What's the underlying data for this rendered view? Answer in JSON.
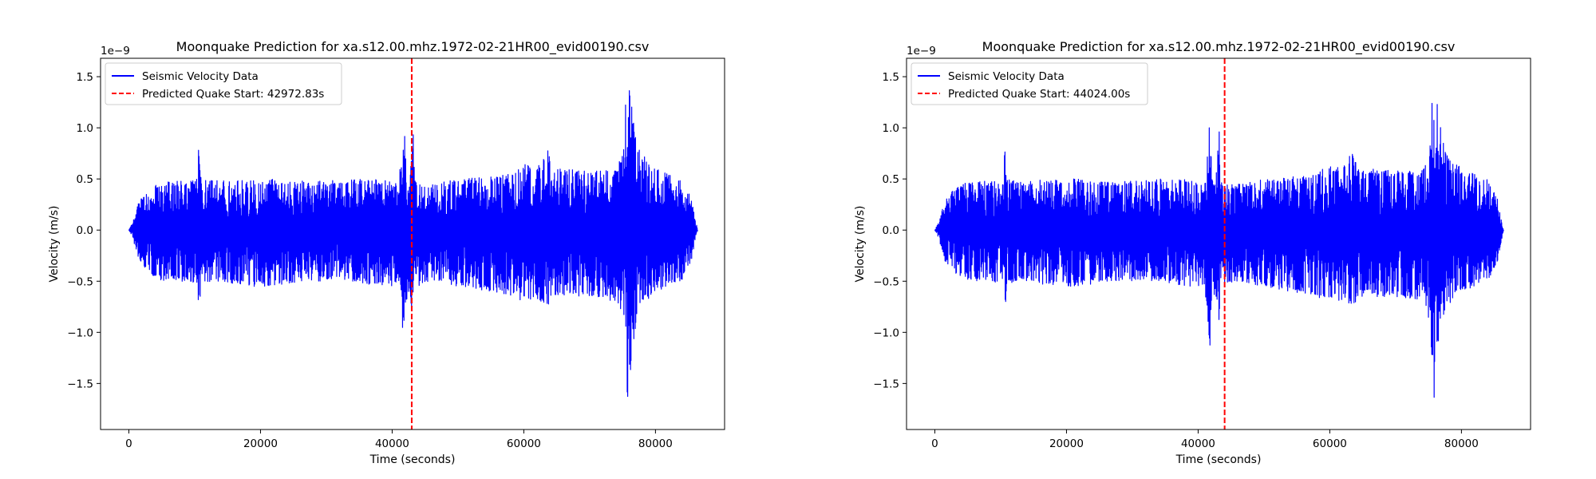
{
  "chart_data": [
    {
      "type": "line",
      "title": "Moonquake Prediction for xa.s12.00.mhz.1972-02-21HR00_evid00190.csv",
      "xlabel": "Time (seconds)",
      "ylabel": "Velocity (m/s)",
      "y_offset_label": "1e−9",
      "xlim": [
        -4300,
        90500
      ],
      "ylim": [
        -1.95,
        1.68
      ],
      "xticks": [
        0,
        20000,
        40000,
        60000,
        80000
      ],
      "xtick_labels": [
        "0",
        "20000",
        "40000",
        "60000",
        "80000"
      ],
      "yticks": [
        -1.5,
        -1.0,
        -0.5,
        0.0,
        0.5,
        1.0,
        1.5
      ],
      "ytick_labels": [
        "−1.5",
        "−1.0",
        "−0.5",
        "0.0",
        "0.5",
        "1.0",
        "1.5"
      ],
      "grid": false,
      "legend": "top-left",
      "series": [
        {
          "name": "Seismic Velocity Data",
          "color": "#0000ff",
          "style": "solid",
          "envelope": {
            "x": [
              0,
              600,
              1500,
              3000,
              5000,
              8000,
              10400,
              10600,
              11000,
              14000,
              18000,
              22000,
              26000,
              30000,
              34000,
              38000,
              41000,
              41800,
              42200,
              42600,
              43200,
              43400,
              43800,
              46000,
              50000,
              54000,
              58000,
              60000,
              62000,
              63800,
              64200,
              66000,
              70000,
              74000,
              75200,
              75600,
              76000,
              76500,
              77000,
              77600,
              78500,
              80000,
              82000,
              84000,
              85500,
              86400
            ],
            "upper": [
              0.0,
              0.08,
              0.28,
              0.42,
              0.48,
              0.48,
              0.5,
              0.82,
              0.5,
              0.48,
              0.5,
              0.5,
              0.48,
              0.48,
              0.5,
              0.5,
              0.45,
              1.13,
              0.5,
              0.45,
              1.0,
              0.5,
              0.45,
              0.45,
              0.5,
              0.52,
              0.55,
              0.65,
              0.62,
              0.82,
              0.6,
              0.6,
              0.58,
              0.58,
              0.8,
              1.52,
              1.45,
              1.2,
              0.9,
              0.8,
              0.7,
              0.6,
              0.55,
              0.5,
              0.3,
              0.0
            ],
            "lower": [
              0.0,
              -0.08,
              -0.3,
              -0.42,
              -0.5,
              -0.5,
              -0.52,
              -0.84,
              -0.52,
              -0.5,
              -0.55,
              -0.55,
              -0.5,
              -0.5,
              -0.5,
              -0.55,
              -0.55,
              -1.14,
              -0.7,
              -0.6,
              -0.9,
              -0.5,
              -0.55,
              -0.5,
              -0.55,
              -0.6,
              -0.65,
              -0.7,
              -0.68,
              -0.75,
              -0.65,
              -0.65,
              -0.65,
              -0.7,
              -0.9,
              -1.78,
              -1.6,
              -1.2,
              -0.95,
              -0.75,
              -0.7,
              -0.6,
              -0.55,
              -0.5,
              -0.3,
              0.0
            ]
          }
        },
        {
          "name": "Predicted Quake Start: 42972.83s",
          "color": "#ff0000",
          "style": "dashed",
          "x": 42972.83
        }
      ]
    },
    {
      "type": "line",
      "title": "Moonquake Prediction for xa.s12.00.mhz.1972-02-21HR00_evid00190.csv",
      "xlabel": "Time (seconds)",
      "ylabel": "Velocity (m/s)",
      "y_offset_label": "1e−9",
      "xlim": [
        -4300,
        90500
      ],
      "ylim": [
        -1.95,
        1.68
      ],
      "xticks": [
        0,
        20000,
        40000,
        60000,
        80000
      ],
      "xtick_labels": [
        "0",
        "20000",
        "40000",
        "60000",
        "80000"
      ],
      "yticks": [
        -1.5,
        -1.0,
        -0.5,
        0.0,
        0.5,
        1.0,
        1.5
      ],
      "ytick_labels": [
        "−1.5",
        "−1.0",
        "−0.5",
        "0.0",
        "0.5",
        "1.0",
        "1.5"
      ],
      "grid": false,
      "legend": "top-left",
      "series": [
        {
          "name": "Seismic Velocity Data",
          "color": "#0000ff",
          "style": "solid",
          "envelope": {
            "x": [
              0,
              600,
              1500,
              3000,
              5000,
              8000,
              10400,
              10600,
              11000,
              14000,
              18000,
              22000,
              26000,
              30000,
              34000,
              38000,
              41000,
              41800,
              42200,
              42600,
              43200,
              43400,
              43800,
              46000,
              50000,
              54000,
              58000,
              60000,
              62000,
              63800,
              64200,
              66000,
              70000,
              74000,
              75200,
              75600,
              76000,
              76500,
              77000,
              77600,
              78500,
              80000,
              82000,
              84000,
              85500,
              86400
            ],
            "upper": [
              0.0,
              0.08,
              0.28,
              0.42,
              0.48,
              0.48,
              0.5,
              0.82,
              0.5,
              0.48,
              0.5,
              0.5,
              0.48,
              0.48,
              0.5,
              0.5,
              0.45,
              1.13,
              0.5,
              0.45,
              1.0,
              0.5,
              0.45,
              0.45,
              0.5,
              0.52,
              0.55,
              0.65,
              0.62,
              0.82,
              0.6,
              0.6,
              0.58,
              0.58,
              0.8,
              1.52,
              1.45,
              1.2,
              0.9,
              0.8,
              0.7,
              0.6,
              0.55,
              0.5,
              0.3,
              0.0
            ],
            "lower": [
              0.0,
              -0.08,
              -0.3,
              -0.42,
              -0.5,
              -0.5,
              -0.52,
              -0.84,
              -0.52,
              -0.5,
              -0.55,
              -0.55,
              -0.5,
              -0.5,
              -0.5,
              -0.55,
              -0.55,
              -1.14,
              -0.7,
              -0.6,
              -0.9,
              -0.5,
              -0.55,
              -0.5,
              -0.55,
              -0.6,
              -0.65,
              -0.7,
              -0.68,
              -0.75,
              -0.65,
              -0.65,
              -0.65,
              -0.7,
              -0.9,
              -1.78,
              -1.6,
              -1.2,
              -0.95,
              -0.75,
              -0.7,
              -0.6,
              -0.55,
              -0.5,
              -0.3,
              0.0
            ]
          }
        },
        {
          "name": "Predicted Quake Start: 44024.00s",
          "color": "#ff0000",
          "style": "dashed",
          "x": 44024.0
        }
      ]
    }
  ]
}
